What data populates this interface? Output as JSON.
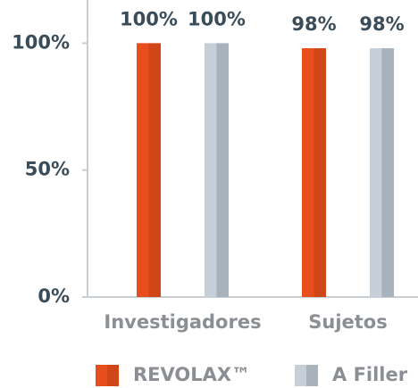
{
  "chart_data": {
    "type": "bar",
    "categories": [
      "Investigadores",
      "Sujetos"
    ],
    "series": [
      {
        "name": "REVOLAX™",
        "color": "#e84e1b",
        "values": [
          100,
          98
        ],
        "value_labels": [
          "100%",
          "98%"
        ]
      },
      {
        "name": "A Filler",
        "color": "#c6cfd7",
        "values": [
          100,
          98
        ],
        "value_labels": [
          "100%",
          "98%"
        ]
      }
    ],
    "ylim": [
      0,
      117
    ],
    "yticks": [
      {
        "value": 0,
        "label": "0%"
      },
      {
        "value": 50,
        "label": "50%"
      },
      {
        "value": 100,
        "label": "100%"
      }
    ]
  }
}
